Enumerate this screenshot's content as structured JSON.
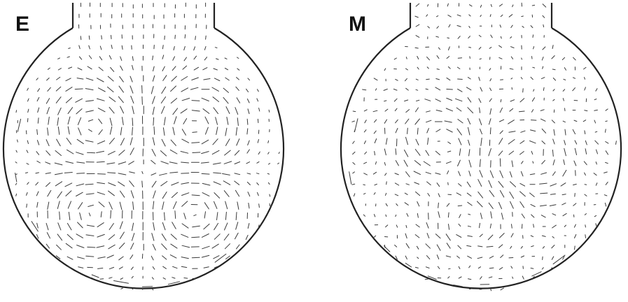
{
  "panels": [
    {
      "id": "E",
      "label": "E",
      "pattern": "four-vortex"
    },
    {
      "id": "M",
      "label": "M",
      "pattern": "irregular"
    }
  ],
  "colors": {
    "outline": "#222222",
    "vector": "#3a3a3a",
    "label": "#111111",
    "background": "#ffffff"
  }
}
